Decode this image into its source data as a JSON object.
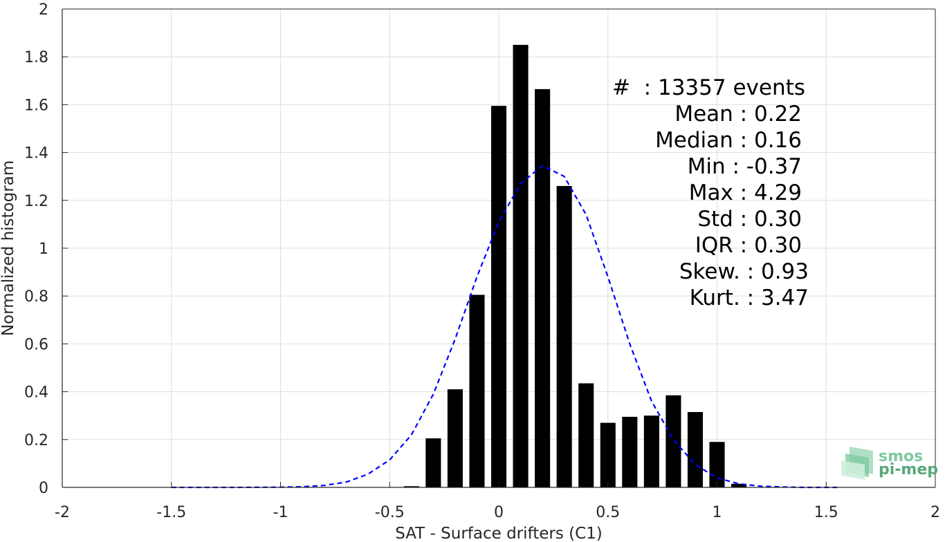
{
  "chart_data": {
    "type": "bar",
    "xlabel": "SAT - Surface drifters (C1)",
    "ylabel": "Normalized histogram",
    "xlim": [
      -2,
      2
    ],
    "ylim": [
      0,
      2
    ],
    "xticks": [
      "-2",
      "-1.5",
      "-1",
      "-0.5",
      "0",
      "0.5",
      "1",
      "1.5",
      "2"
    ],
    "yticks": [
      "0",
      "0.2",
      "0.4",
      "0.6",
      "0.8",
      "1",
      "1.2",
      "1.4",
      "1.6",
      "1.8",
      "2"
    ],
    "grid": true,
    "bar_color": "#000000",
    "curve_color": "#0000ff",
    "bars": {
      "x": [
        -0.4,
        -0.3,
        -0.2,
        -0.1,
        0.0,
        0.1,
        0.2,
        0.3,
        0.4,
        0.5,
        0.6,
        0.7,
        0.8,
        0.9,
        1.0,
        1.1
      ],
      "values": [
        0.005,
        0.205,
        0.41,
        0.805,
        1.595,
        1.85,
        1.665,
        1.26,
        0.435,
        0.27,
        0.295,
        0.3,
        0.385,
        0.315,
        0.19,
        0.015
      ]
    },
    "fit_curve": {
      "name": "Gaussian fit",
      "style": "dashed",
      "x": [
        -1.5,
        -1.2,
        -1.0,
        -0.9,
        -0.8,
        -0.7,
        -0.6,
        -0.5,
        -0.4,
        -0.3,
        -0.2,
        -0.1,
        0.0,
        0.1,
        0.2,
        0.3,
        0.4,
        0.5,
        0.6,
        0.7,
        0.8,
        0.9,
        1.0,
        1.1,
        1.2,
        1.3,
        1.4,
        1.55
      ],
      "y": [
        0.0,
        0.0,
        0.001,
        0.003,
        0.008,
        0.022,
        0.055,
        0.115,
        0.22,
        0.39,
        0.62,
        0.88,
        1.11,
        1.27,
        1.345,
        1.3,
        1.14,
        0.88,
        0.6,
        0.36,
        0.2,
        0.095,
        0.04,
        0.015,
        0.005,
        0.002,
        0.0,
        0.0
      ]
    },
    "annotations": [
      "#  : 13357 events",
      "Mean : 0.22",
      "Median : 0.16",
      "Min : -0.37",
      "Max : 4.29",
      "Std : 0.30",
      "IQR : 0.30",
      "Skew. : 0.93",
      "Kurt. : 3.47"
    ]
  },
  "logo": {
    "line1": "smos",
    "line2": "pi-mep",
    "color1": "#7fc9a0",
    "color2": "#5aa77c"
  }
}
